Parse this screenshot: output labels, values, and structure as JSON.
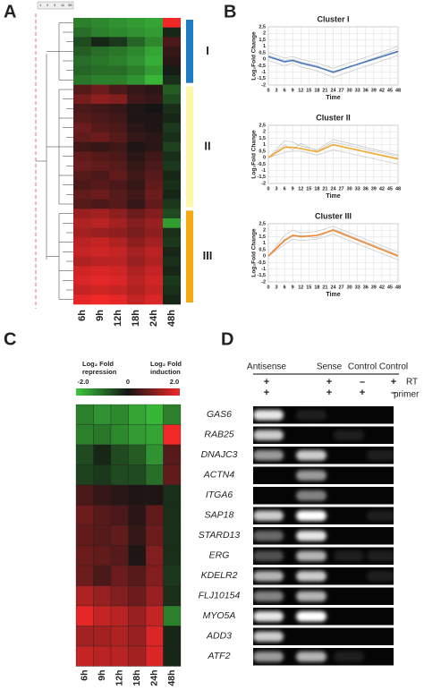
{
  "panel_labels": [
    "A",
    "B",
    "C",
    "D"
  ],
  "chart_data": [
    {
      "type": "heatmap",
      "columns": [
        "6h",
        "9h",
        "12h",
        "18h",
        "24h",
        "48h"
      ],
      "key_labels": [
        "1",
        "2",
        "3",
        "11",
        "38"
      ],
      "zlim": [
        -2,
        2
      ],
      "colors": [
        "#3cc83c",
        "#141414",
        "#f02828"
      ],
      "row_groups": [
        {
          "name": "I",
          "color": "#1f7cc4",
          "values": [
            [
              -1.2,
              -1.3,
              -1.4,
              -1.5,
              -1.6,
              2.0
            ],
            [
              -1.0,
              -1.2,
              -1.3,
              -1.4,
              -1.5,
              -0.2
            ],
            [
              -0.6,
              -0.2,
              -0.4,
              -0.9,
              -1.3,
              0.5
            ],
            [
              -0.8,
              -1.0,
              -1.1,
              -1.3,
              -1.6,
              0.3
            ],
            [
              -1.0,
              -1.1,
              -1.2,
              -1.4,
              -1.7,
              0.2
            ],
            [
              -0.9,
              -1.0,
              -1.0,
              -1.2,
              -1.5,
              -0.1
            ],
            [
              -1.1,
              -1.2,
              -1.2,
              -1.4,
              -1.8,
              -0.3
            ]
          ]
        },
        {
          "name": "II",
          "color": "#fbf7a6",
          "values": [
            [
              0.6,
              0.8,
              0.5,
              0.3,
              0.2,
              -0.8
            ],
            [
              0.9,
              1.1,
              1.0,
              0.4,
              0.3,
              -0.6
            ],
            [
              0.5,
              0.4,
              0.3,
              0.1,
              0.0,
              -0.3
            ],
            [
              0.6,
              0.5,
              0.4,
              0.1,
              0.1,
              -0.2
            ],
            [
              0.8,
              0.6,
              0.5,
              0.2,
              0.1,
              -0.4
            ],
            [
              0.7,
              0.8,
              0.6,
              0.3,
              0.2,
              -0.3
            ],
            [
              0.4,
              0.3,
              0.4,
              0.1,
              0.2,
              -0.5
            ],
            [
              0.7,
              0.6,
              0.5,
              0.2,
              0.4,
              -0.3
            ],
            [
              0.8,
              0.7,
              0.6,
              0.3,
              0.5,
              -0.4
            ],
            [
              0.6,
              0.5,
              0.7,
              0.4,
              0.6,
              -0.2
            ],
            [
              0.5,
              0.6,
              0.5,
              0.3,
              0.7,
              -0.3
            ],
            [
              0.7,
              0.8,
              0.6,
              0.4,
              0.8,
              -0.2
            ],
            [
              0.6,
              0.5,
              0.6,
              0.3,
              0.7,
              -0.4
            ]
          ]
        },
        {
          "name": "III",
          "color": "#f5aa12",
          "values": [
            [
              1.2,
              1.3,
              1.1,
              0.8,
              1.0,
              -0.6
            ],
            [
              1.4,
              1.5,
              1.3,
              1.0,
              1.2,
              -1.5
            ],
            [
              1.3,
              1.2,
              1.1,
              0.9,
              1.1,
              -0.3
            ],
            [
              1.5,
              1.6,
              1.4,
              1.1,
              1.3,
              -0.4
            ],
            [
              1.6,
              1.7,
              1.6,
              1.3,
              1.5,
              -0.2
            ],
            [
              1.4,
              1.5,
              1.5,
              1.2,
              1.4,
              -0.3
            ],
            [
              1.7,
              1.8,
              1.7,
              1.4,
              1.6,
              -0.2
            ],
            [
              1.8,
              1.9,
              1.8,
              1.5,
              1.7,
              -0.4
            ],
            [
              1.6,
              1.7,
              1.6,
              1.4,
              1.6,
              -0.3
            ],
            [
              1.9,
              2.0,
              1.9,
              1.6,
              1.8,
              -0.2
            ]
          ]
        }
      ]
    },
    {
      "type": "line",
      "title": "Cluster I",
      "x_label": "Time",
      "y_label": "Log₂Fold Change",
      "grid": true,
      "x": [
        0,
        6,
        9,
        12,
        18,
        24,
        48
      ],
      "xlim": [
        0,
        48
      ],
      "xticks": [
        0,
        3,
        6,
        9,
        12,
        15,
        18,
        21,
        24,
        27,
        30,
        33,
        36,
        39,
        42,
        45,
        48
      ],
      "ylim": [
        -2,
        2.5
      ],
      "yticks": [
        -2,
        {
          "value": -1.5,
          "label": "-1,5"
        },
        -1,
        {
          "value": -0.5,
          "label": "-0,5"
        },
        0,
        {
          "value": 0.5,
          "label": "0,5"
        },
        1,
        {
          "value": 1.5,
          "label": "1,5"
        },
        2,
        {
          "value": 2.5,
          "label": "2,5"
        }
      ],
      "series": [
        {
          "color": "#c4c4c4",
          "values": [
            0.5,
            0.1,
            0.2,
            0,
            -0.3,
            -0.7,
            1.0
          ]
        },
        {
          "color": "#c4c4c4",
          "values": [
            -0.1,
            -0.5,
            -0.3,
            -0.6,
            -0.9,
            -1.4,
            0.3
          ]
        },
        {
          "color": "#c4c4c4",
          "values": [
            0.3,
            -0.1,
            0,
            -0.2,
            -0.5,
            -1.1,
            0.8
          ]
        },
        {
          "color": "#4a78b8",
          "values": [
            0.2,
            -0.2,
            -0.1,
            -0.3,
            -0.6,
            -1.0,
            0.6
          ]
        }
      ]
    },
    {
      "type": "line",
      "title": "Cluster II",
      "x_label": "Time",
      "y_label": "Log₂Fold Change",
      "grid": true,
      "x": [
        0,
        6,
        9,
        12,
        18,
        24,
        48
      ],
      "xlim": [
        0,
        48
      ],
      "xticks": [
        0,
        3,
        6,
        9,
        12,
        15,
        18,
        21,
        24,
        27,
        30,
        33,
        36,
        39,
        42,
        45,
        48
      ],
      "ylim": [
        -2,
        2.5
      ],
      "yticks": [
        -2,
        {
          "value": -1.5,
          "label": "-1,5"
        },
        -1,
        {
          "value": -0.5,
          "label": "-0,5"
        },
        0,
        {
          "value": 0.5,
          "label": "0,5"
        },
        1,
        {
          "value": 1.5,
          "label": "1,5"
        },
        2,
        {
          "value": 2.5,
          "label": "2,5"
        }
      ],
      "series": [
        {
          "color": "#c4c4c4",
          "values": [
            0,
            1.3,
            1.2,
            0.9,
            0.6,
            1.4,
            0.2
          ]
        },
        {
          "color": "#c4c4c4",
          "values": [
            0,
            0.4,
            0.5,
            0.5,
            0.2,
            0.6,
            -0.5
          ]
        },
        {
          "color": "#c4c4c4",
          "values": [
            0,
            1.0,
            0.6,
            1.1,
            0.5,
            1.2,
            0.1
          ]
        },
        {
          "color": "#f0a830",
          "values": [
            0,
            0.8,
            0.8,
            0.7,
            0.45,
            1.0,
            -0.1
          ]
        }
      ]
    },
    {
      "type": "line",
      "title": "Cluster III",
      "x_label": "Time",
      "y_label": "Log₂Fold Change",
      "grid": true,
      "x": [
        0,
        6,
        9,
        12,
        18,
        24,
        48
      ],
      "xlim": [
        0,
        48
      ],
      "xticks": [
        0,
        3,
        6,
        9,
        12,
        15,
        18,
        21,
        24,
        27,
        30,
        33,
        36,
        39,
        42,
        45,
        48
      ],
      "ylim": [
        -2,
        2.5
      ],
      "yticks": [
        -2,
        {
          "value": -1.5,
          "label": "-1,5"
        },
        -1,
        {
          "value": -0.5,
          "label": "-0,5"
        },
        0,
        {
          "value": 0.5,
          "label": "0,5"
        },
        1,
        {
          "value": 1.5,
          "label": "1,5"
        },
        2,
        {
          "value": 2.5,
          "label": "2,5"
        }
      ],
      "series": [
        {
          "color": "#c4c4c4",
          "values": [
            0,
            1.6,
            2.0,
            1.8,
            1.9,
            2.3,
            0.3
          ]
        },
        {
          "color": "#c4c4c4",
          "values": [
            0,
            0.9,
            1.3,
            1.2,
            1.3,
            1.7,
            -0.3
          ]
        },
        {
          "color": "#c4c4c4",
          "values": [
            0,
            1.3,
            1.5,
            1.6,
            1.4,
            2.1,
            0.1
          ]
        },
        {
          "color": "#f08830",
          "values": [
            0,
            1.2,
            1.6,
            1.5,
            1.6,
            2.0,
            0.0
          ]
        }
      ]
    },
    {
      "type": "heatmap",
      "columns": [
        "6h",
        "9h",
        "12h",
        "18h",
        "24h",
        "48h"
      ],
      "rows": [
        "GAS6",
        "RAB25",
        "DNAJC3",
        "ACTN4",
        "ITGA6",
        "SAP18",
        "STARD13",
        "ERG",
        "KDELR2",
        "FLJ10154",
        "MYO5A",
        "ADD3",
        "ATF2"
      ],
      "zlim": [
        -2,
        2
      ],
      "colors": [
        "#3cc83c",
        "#141414",
        "#f02828"
      ],
      "colorbar_ticks": [
        {
          "value": -2,
          "label": "-2.0"
        },
        0,
        {
          "value": 2,
          "label": "2.0"
        }
      ],
      "colorbar_low_label": [
        "Log₂ Fold",
        "repression"
      ],
      "colorbar_high_label": [
        "Log₂ Fold",
        "induction"
      ],
      "values": [
        [
          -1.2,
          -1.4,
          -1.3,
          -1.6,
          -1.8,
          -1.2
        ],
        [
          -1.2,
          -1.1,
          -1.3,
          -1.5,
          -1.6,
          2.0
        ],
        [
          -0.6,
          -0.2,
          -0.6,
          -0.8,
          -1.4,
          0.6
        ],
        [
          -0.5,
          -0.4,
          -0.6,
          -0.6,
          -1.0,
          0.7
        ],
        [
          0.5,
          0.3,
          0.2,
          0.1,
          0.1,
          -0.3
        ],
        [
          0.8,
          0.6,
          0.5,
          0.2,
          0.7,
          -0.3
        ],
        [
          0.7,
          0.6,
          0.7,
          0.3,
          0.8,
          -0.3
        ],
        [
          0.8,
          0.7,
          0.6,
          0.1,
          1.0,
          -0.3
        ],
        [
          0.8,
          0.5,
          0.8,
          0.6,
          1.0,
          -0.4
        ],
        [
          1.4,
          1.2,
          1.0,
          0.8,
          1.2,
          -0.3
        ],
        [
          1.9,
          1.6,
          1.5,
          1.2,
          1.6,
          -1.2
        ],
        [
          1.3,
          1.3,
          1.4,
          1.2,
          1.8,
          -0.2
        ],
        [
          1.6,
          1.5,
          1.5,
          1.3,
          1.8,
          -0.2
        ]
      ]
    }
  ],
  "gel": {
    "lanes": [
      "Antisense",
      "Sense",
      "Control",
      "Control"
    ],
    "conditions": [
      {
        "name": "RT",
        "signs": [
          "+",
          "+",
          "–",
          "+"
        ]
      },
      {
        "name": "primer",
        "signs": [
          "+",
          "+",
          "+",
          "–"
        ]
      }
    ],
    "bands": [
      [
        0.9,
        0.1,
        0,
        0
      ],
      [
        0.8,
        0,
        0.1,
        0
      ],
      [
        0.6,
        0.8,
        0,
        0.1
      ],
      [
        0,
        0.6,
        0,
        0
      ],
      [
        0,
        0.5,
        0,
        0
      ],
      [
        0.8,
        1,
        0,
        0.1
      ],
      [
        0.4,
        0.9,
        0,
        0
      ],
      [
        0.3,
        0.7,
        0.1,
        0.1
      ],
      [
        0.7,
        0.8,
        0,
        0.1
      ],
      [
        0.5,
        0.7,
        0,
        0
      ],
      [
        0.9,
        1,
        0,
        0
      ],
      [
        0.8,
        0,
        0,
        0
      ],
      [
        0.6,
        0.7,
        0.1,
        0
      ]
    ]
  }
}
